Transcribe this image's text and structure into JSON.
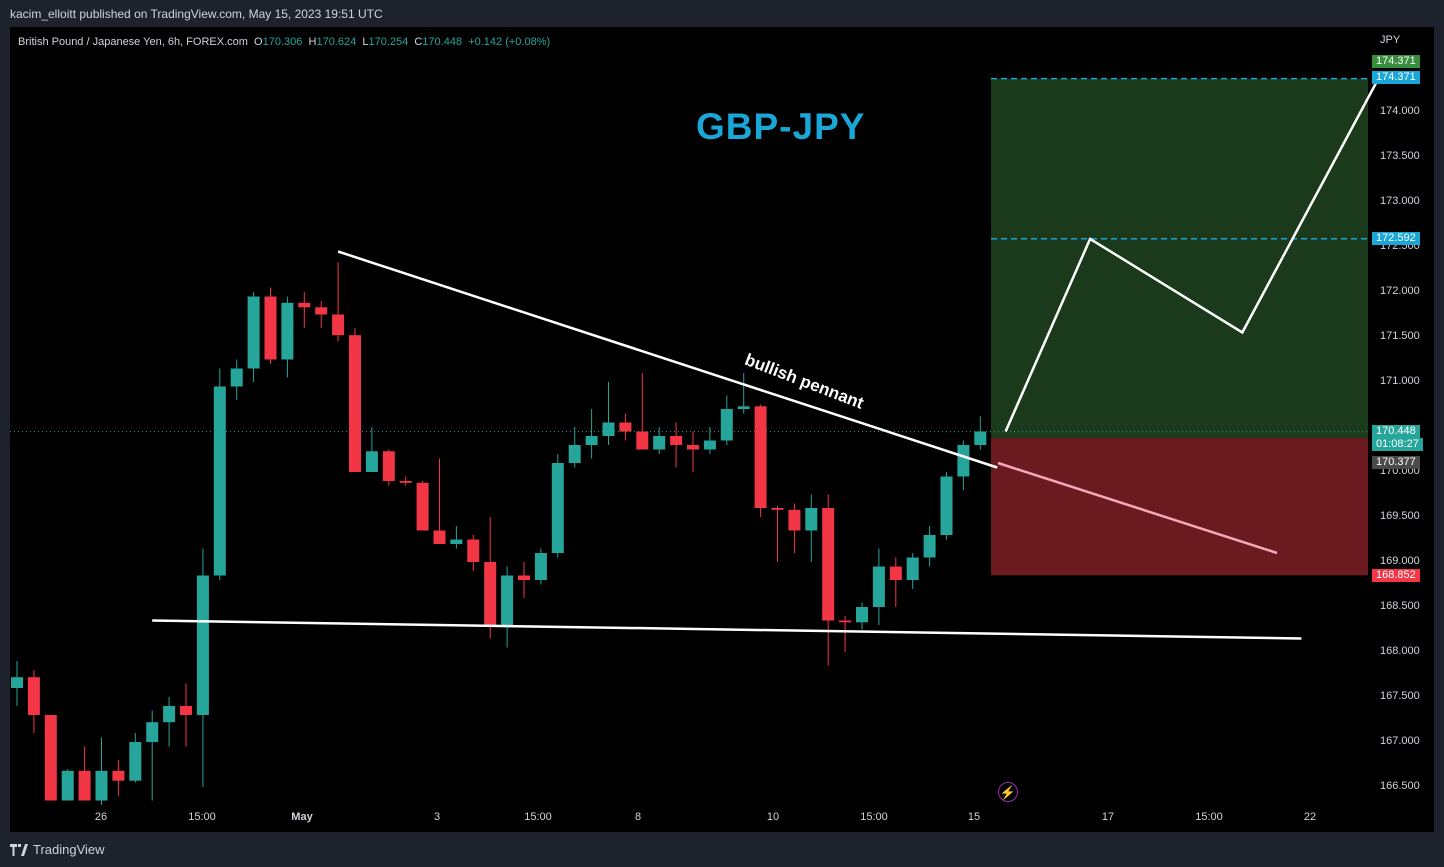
{
  "header": {
    "publisher_line": "kacim_elloitt published on TradingView.com, May 15, 2023 19:51 UTC"
  },
  "symbol_info": {
    "name": "British Pound / Japanese Yen, 6h, FOREX.com",
    "o_label": "O",
    "o_value": "170.306",
    "h_label": "H",
    "h_value": "170.624",
    "l_label": "L",
    "l_value": "170.254",
    "c_label": "C",
    "c_value": "170.448",
    "change": "+0.142 (+0.08%)"
  },
  "annotations": {
    "title": "GBP-JPY",
    "pattern_label": "bullish pennant",
    "bolt_icon": "lightning-icon"
  },
  "price_axis": {
    "currency": "JPY",
    "ticks": [
      "174.000",
      "173.500",
      "173.000",
      "172.500",
      "172.000",
      "171.500",
      "171.000",
      "170.000",
      "169.500",
      "169.000",
      "168.500",
      "168.000",
      "167.500",
      "167.000",
      "166.500"
    ]
  },
  "price_labels": {
    "target_top_green": "174.371",
    "target_top_cyan": "174.371",
    "target_mid": "172.592",
    "current_price": "170.448",
    "countdown": "01:08:27",
    "entry_price": "170.377",
    "stop_price": "168.852"
  },
  "time_axis": {
    "ticks": [
      "26",
      "15:00",
      "May",
      "3",
      "15:00",
      "8",
      "10",
      "15:00",
      "15",
      "17",
      "15:00",
      "22"
    ]
  },
  "footer": {
    "brand": "TradingView"
  },
  "colors": {
    "up": "#26a69a",
    "down": "#f23645",
    "target_zone": "#1b3a1b",
    "stop_zone": "#6b1a20",
    "accent_cyan": "#1aa7d8"
  },
  "chart_data": {
    "type": "candlestick",
    "symbol": "GBPJPY",
    "interval": "6h",
    "ylim": [
      166.25,
      174.7
    ],
    "candles": [
      {
        "o": 167.6,
        "h": 167.9,
        "l": 167.4,
        "c": 167.72
      },
      {
        "o": 167.72,
        "h": 167.8,
        "l": 167.1,
        "c": 167.3
      },
      {
        "o": 167.3,
        "h": 167.3,
        "l": 166.35,
        "c": 166.35
      },
      {
        "o": 166.35,
        "h": 166.7,
        "l": 166.35,
        "c": 166.68
      },
      {
        "o": 166.68,
        "h": 166.95,
        "l": 166.35,
        "c": 166.35
      },
      {
        "o": 166.35,
        "h": 167.05,
        "l": 166.3,
        "c": 166.68
      },
      {
        "o": 166.68,
        "h": 166.8,
        "l": 166.4,
        "c": 166.57
      },
      {
        "o": 166.57,
        "h": 167.1,
        "l": 166.55,
        "c": 167.0
      },
      {
        "o": 167.0,
        "h": 167.35,
        "l": 166.35,
        "c": 167.22
      },
      {
        "o": 167.22,
        "h": 167.5,
        "l": 166.95,
        "c": 167.4
      },
      {
        "o": 167.4,
        "h": 167.65,
        "l": 166.95,
        "c": 167.3
      },
      {
        "o": 167.3,
        "h": 169.15,
        "l": 166.5,
        "c": 168.85
      },
      {
        "o": 168.85,
        "h": 171.15,
        "l": 168.8,
        "c": 170.95
      },
      {
        "o": 170.95,
        "h": 171.25,
        "l": 170.8,
        "c": 171.15
      },
      {
        "o": 171.15,
        "h": 172.0,
        "l": 171.0,
        "c": 171.95
      },
      {
        "o": 171.95,
        "h": 172.05,
        "l": 171.2,
        "c": 171.25
      },
      {
        "o": 171.25,
        "h": 171.95,
        "l": 171.05,
        "c": 171.88
      },
      {
        "o": 171.88,
        "h": 172.0,
        "l": 171.6,
        "c": 171.83
      },
      {
        "o": 171.83,
        "h": 171.9,
        "l": 171.6,
        "c": 171.75
      },
      {
        "o": 171.75,
        "h": 172.33,
        "l": 171.45,
        "c": 171.52
      },
      {
        "o": 171.52,
        "h": 171.6,
        "l": 170.0,
        "c": 170.0
      },
      {
        "o": 170.0,
        "h": 170.5,
        "l": 170.0,
        "c": 170.23
      },
      {
        "o": 170.23,
        "h": 170.25,
        "l": 169.85,
        "c": 169.9
      },
      {
        "o": 169.9,
        "h": 169.95,
        "l": 169.85,
        "c": 169.88
      },
      {
        "o": 169.88,
        "h": 169.9,
        "l": 169.35,
        "c": 169.35
      },
      {
        "o": 169.35,
        "h": 170.15,
        "l": 169.2,
        "c": 169.2
      },
      {
        "o": 169.2,
        "h": 169.4,
        "l": 169.15,
        "c": 169.25
      },
      {
        "o": 169.25,
        "h": 169.3,
        "l": 168.9,
        "c": 169.0
      },
      {
        "o": 169.0,
        "h": 169.5,
        "l": 168.15,
        "c": 168.3
      },
      {
        "o": 168.3,
        "h": 168.95,
        "l": 168.05,
        "c": 168.85
      },
      {
        "o": 168.85,
        "h": 169.0,
        "l": 168.6,
        "c": 168.8
      },
      {
        "o": 168.8,
        "h": 169.15,
        "l": 168.75,
        "c": 169.1
      },
      {
        "o": 169.1,
        "h": 170.2,
        "l": 169.05,
        "c": 170.1
      },
      {
        "o": 170.1,
        "h": 170.5,
        "l": 170.05,
        "c": 170.3
      },
      {
        "o": 170.3,
        "h": 170.7,
        "l": 170.15,
        "c": 170.4
      },
      {
        "o": 170.4,
        "h": 171.0,
        "l": 170.3,
        "c": 170.55
      },
      {
        "o": 170.55,
        "h": 170.65,
        "l": 170.35,
        "c": 170.45
      },
      {
        "o": 170.45,
        "h": 171.1,
        "l": 170.3,
        "c": 170.25
      },
      {
        "o": 170.25,
        "h": 170.5,
        "l": 170.2,
        "c": 170.4
      },
      {
        "o": 170.4,
        "h": 170.55,
        "l": 170.05,
        "c": 170.3
      },
      {
        "o": 170.3,
        "h": 170.45,
        "l": 170.0,
        "c": 170.25
      },
      {
        "o": 170.25,
        "h": 170.5,
        "l": 170.2,
        "c": 170.35
      },
      {
        "o": 170.35,
        "h": 170.85,
        "l": 170.3,
        "c": 170.7
      },
      {
        "o": 170.7,
        "h": 171.1,
        "l": 170.65,
        "c": 170.73
      },
      {
        "o": 170.73,
        "h": 170.75,
        "l": 169.5,
        "c": 169.6
      },
      {
        "o": 169.6,
        "h": 169.62,
        "l": 169.0,
        "c": 169.58
      },
      {
        "o": 169.58,
        "h": 169.65,
        "l": 169.1,
        "c": 169.35
      },
      {
        "o": 169.35,
        "h": 169.75,
        "l": 169.0,
        "c": 169.6
      },
      {
        "o": 169.6,
        "h": 169.75,
        "l": 167.85,
        "c": 168.35
      },
      {
        "o": 168.35,
        "h": 168.4,
        "l": 168.0,
        "c": 168.33
      },
      {
        "o": 168.33,
        "h": 168.55,
        "l": 168.25,
        "c": 168.5
      },
      {
        "o": 168.5,
        "h": 169.15,
        "l": 168.3,
        "c": 168.95
      },
      {
        "o": 168.95,
        "h": 169.05,
        "l": 168.5,
        "c": 168.8
      },
      {
        "o": 168.8,
        "h": 169.1,
        "l": 168.7,
        "c": 169.05
      },
      {
        "o": 169.05,
        "h": 169.4,
        "l": 168.95,
        "c": 169.3
      },
      {
        "o": 169.3,
        "h": 170.0,
        "l": 169.25,
        "c": 169.95
      },
      {
        "o": 169.95,
        "h": 170.35,
        "l": 169.8,
        "c": 170.3
      },
      {
        "o": 170.3,
        "h": 170.62,
        "l": 170.25,
        "c": 170.45
      }
    ],
    "trendlines": [
      {
        "name": "pennant-upper",
        "from": {
          "bar": 19,
          "price": 172.45
        },
        "to": {
          "bar": 58,
          "price": 170.05
        }
      },
      {
        "name": "pennant-lower",
        "from": {
          "bar": 8,
          "price": 168.35
        },
        "to": {
          "bar": 76,
          "price": 168.15
        }
      }
    ],
    "projection": [
      {
        "bar": 58.5,
        "price": 170.45
      },
      {
        "bar": 63.5,
        "price": 172.59
      },
      {
        "bar": 72.5,
        "price": 171.55
      },
      {
        "bar": 80.5,
        "price": 174.35
      }
    ],
    "position": {
      "entry": 170.377,
      "target": 174.371,
      "stop": 168.852,
      "mid_target": 172.592
    },
    "current_price": 170.448
  }
}
